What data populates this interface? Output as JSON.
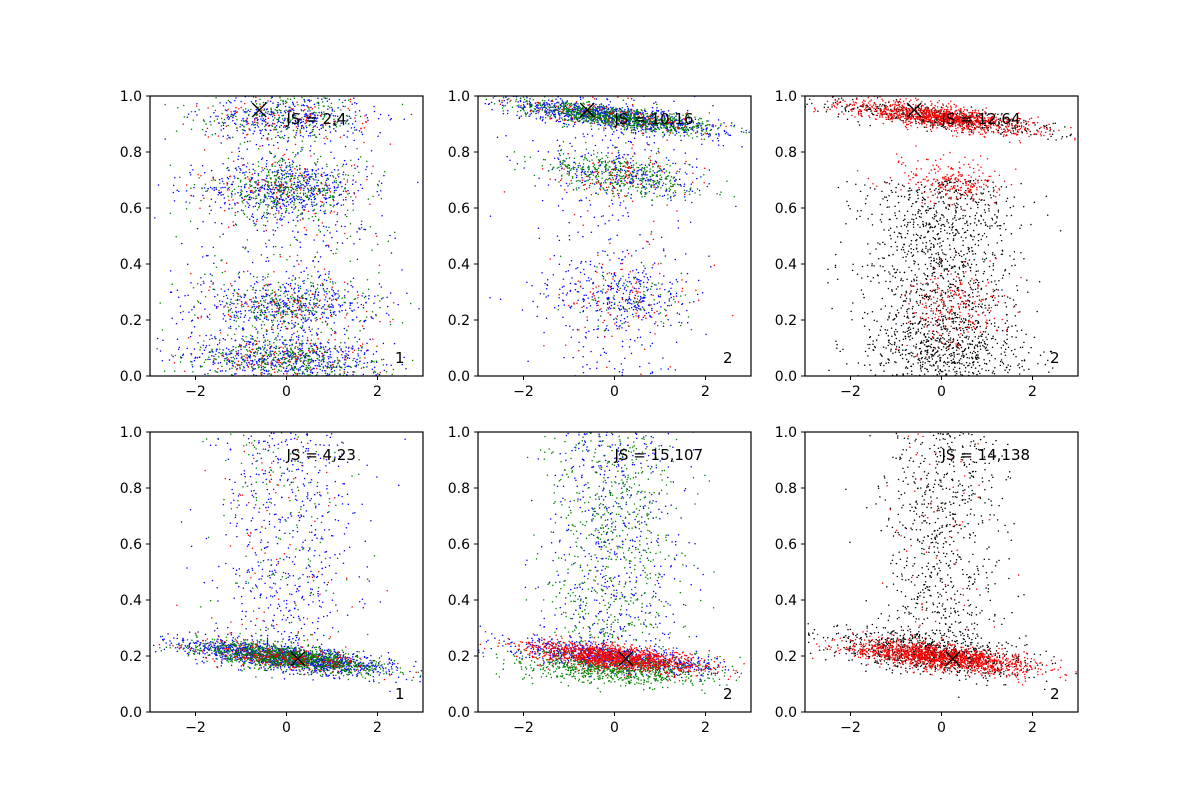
{
  "chart_data": [
    {
      "type": "scatter",
      "title": "",
      "xlabel": "",
      "ylabel": "",
      "xlim": [
        -3,
        3
      ],
      "ylim": [
        0,
        1
      ],
      "xticks": [
        "−2",
        "0",
        "2"
      ],
      "yticks": [
        "0.0",
        "0.2",
        "0.4",
        "0.6",
        "0.8",
        "1.0"
      ],
      "annotation": "JS = 2,4",
      "corner_label": "1",
      "marker": {
        "x": -0.6,
        "y": 0.95
      },
      "series": [
        {
          "color": "#0000ff",
          "density": "bands at y≈0.05, 0.25, 0.68, 0.92, spread over x −2.5..2.5"
        },
        {
          "color": "#008000",
          "density": "bands at y≈0.05, 0.25, 0.68, 0.92"
        },
        {
          "color": "#ff0000",
          "density": "sparse, bands at y≈0.05, 0.25, 0.68, 0.92"
        }
      ]
    },
    {
      "type": "scatter",
      "title": "",
      "xlabel": "",
      "ylabel": "",
      "xlim": [
        -3,
        3
      ],
      "ylim": [
        0,
        1
      ],
      "xticks": [
        "−2",
        "0",
        "2"
      ],
      "yticks": [
        "0.0",
        "0.2",
        "0.4",
        "0.6",
        "0.8",
        "1.0"
      ],
      "annotation": "JS = 10,16",
      "corner_label": "2",
      "marker": {
        "x": -0.6,
        "y": 0.95
      },
      "series": [
        {
          "color": "#0000ff",
          "density": "dense band y≈0.95→0.88, lighter bands y≈0.72, 0.28"
        },
        {
          "color": "#008000",
          "density": "dense band y≈0.95→0.88, band y≈0.72"
        },
        {
          "color": "#ff0000",
          "density": "sparse, bands y≈0.92, 0.72, 0.28"
        }
      ]
    },
    {
      "type": "scatter",
      "title": "",
      "xlabel": "",
      "ylabel": "",
      "xlim": [
        -3,
        3
      ],
      "ylim": [
        0,
        1
      ],
      "xticks": [
        "−2",
        "0",
        "2"
      ],
      "yticks": [
        "0.0",
        "0.2",
        "0.4",
        "0.6",
        "0.8",
        "1.0"
      ],
      "annotation": "JS = 12,64",
      "corner_label": "2",
      "marker": {
        "x": -0.6,
        "y": 0.95
      },
      "series": [
        {
          "color": "#000000",
          "density": "band y≈0.95→0.88, broad spread y 0..0.7"
        },
        {
          "color": "#ff0000",
          "density": "dense band y≈0.95→0.88, bands y≈0.7, 0.25"
        }
      ]
    },
    {
      "type": "scatter",
      "title": "",
      "xlabel": "",
      "ylabel": "",
      "xlim": [
        -3,
        3
      ],
      "ylim": [
        0,
        1
      ],
      "xticks": [
        "−2",
        "0",
        "2"
      ],
      "yticks": [
        "0.0",
        "0.2",
        "0.4",
        "0.6",
        "0.8",
        "1.0"
      ],
      "annotation": "JS = 4,23",
      "corner_label": "1",
      "marker": {
        "x": 0.25,
        "y": 0.19
      },
      "series": [
        {
          "color": "#0000ff",
          "density": "dense band y≈0.23→0.16, sparse spread up to 1.0"
        },
        {
          "color": "#008000",
          "density": "dense band y≈0.23→0.16"
        },
        {
          "color": "#ff0000",
          "density": "sparse, band y≈0.2"
        }
      ]
    },
    {
      "type": "scatter",
      "title": "",
      "xlabel": "",
      "ylabel": "",
      "xlim": [
        -3,
        3
      ],
      "ylim": [
        0,
        1
      ],
      "xticks": [
        "−2",
        "0",
        "2"
      ],
      "yticks": [
        "0.0",
        "0.2",
        "0.4",
        "0.6",
        "0.8",
        "1.0"
      ],
      "annotation": "JS = 15,107",
      "corner_label": "2",
      "marker": {
        "x": 0.25,
        "y": 0.19
      },
      "series": [
        {
          "color": "#0000ff",
          "density": "band y≈0.2→0.15, spread up to 1.0"
        },
        {
          "color": "#008000",
          "density": "band y≈0.17, spread up to 1.0"
        },
        {
          "color": "#ff0000",
          "density": "dense band y≈0.2→0.14"
        }
      ]
    },
    {
      "type": "scatter",
      "title": "",
      "xlabel": "",
      "ylabel": "",
      "xlim": [
        -3,
        3
      ],
      "ylim": [
        0,
        1
      ],
      "xticks": [
        "−2",
        "0",
        "2"
      ],
      "yticks": [
        "0.0",
        "0.2",
        "0.4",
        "0.6",
        "0.8",
        "1.0"
      ],
      "annotation": "JS = 14,138",
      "corner_label": "2",
      "marker": {
        "x": 0.25,
        "y": 0.19
      },
      "series": [
        {
          "color": "#000000",
          "density": "band y≈0.25→0.15, spread up to 1.0"
        },
        {
          "color": "#ff0000",
          "density": "dense band y≈0.2→0.14"
        }
      ]
    }
  ]
}
